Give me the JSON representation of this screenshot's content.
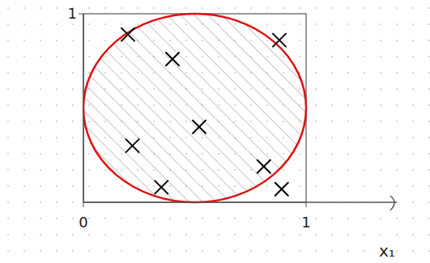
{
  "chart_data": {
    "type": "scatter",
    "x_label": "x₁",
    "x": [
      0.2,
      0.4,
      0.88,
      0.52,
      0.22,
      0.35,
      0.81,
      0.89
    ],
    "values": [
      0.89,
      0.76,
      0.86,
      0.4,
      0.3,
      0.08,
      0.19,
      0.07
    ],
    "color": "#000000",
    "marker": "x",
    "xlim": [
      0,
      1
    ],
    "ylim": [
      0,
      1
    ],
    "xticks": [
      0,
      1
    ],
    "yticks": [
      1
    ],
    "grid": false
  }
}
